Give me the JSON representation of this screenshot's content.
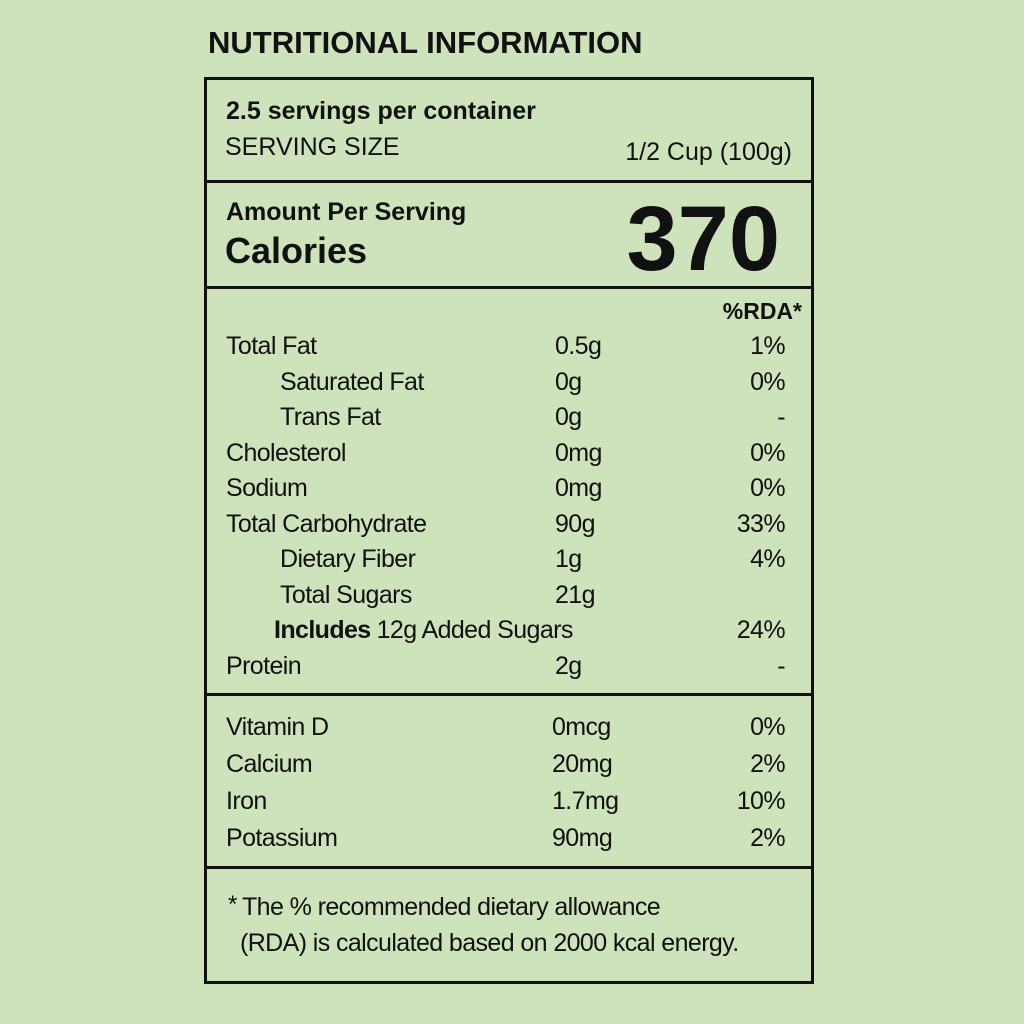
{
  "title": "NUTRITIONAL INFORMATION",
  "serving": {
    "servings": "2.5 servings per container",
    "size_label": "SERVING SIZE",
    "size_value": "1/2 Cup (100g)"
  },
  "calories": {
    "label_small": "Amount Per Serving",
    "label": "Calories",
    "value": "370"
  },
  "nutrients": {
    "header": "%RDA*",
    "rows": [
      {
        "name": "Total Fat",
        "amount": "0.5g",
        "rda": "1%"
      },
      {
        "name": "Saturated Fat",
        "amount": "0g",
        "rda": "0%",
        "indent": true
      },
      {
        "name": "Trans Fat",
        "amount": "0g",
        "rda": "-",
        "indent": true
      },
      {
        "name": "Cholesterol",
        "amount": "0mg",
        "rda": "0%"
      },
      {
        "name": "Sodium",
        "amount": "0mg",
        "rda": "0%"
      },
      {
        "name": "Total Carbohydrate",
        "amount": "90g",
        "rda": "33%"
      },
      {
        "name": "Dietary Fiber",
        "amount": "1g",
        "rda": "4%",
        "indent": true
      },
      {
        "name": "Total Sugars",
        "amount": "21g",
        "indent": true
      },
      {
        "bold": "Includes",
        "name": "12g Added Sugars",
        "rda": "24%"
      },
      {
        "name": "Protein",
        "amount": "2g",
        "rda": "-"
      }
    ]
  },
  "vitamins": {
    "rows": [
      {
        "name": "Vitamin D",
        "amount": "0mcg",
        "rda": "0%"
      },
      {
        "name": "Calcium",
        "amount": "20mg",
        "rda": "2%"
      },
      {
        "name": "Iron",
        "amount": "1.7mg",
        "rda": "10%"
      },
      {
        "name": "Potassium",
        "amount": "90mg",
        "rda": "2%"
      }
    ]
  },
  "footnote": {
    "mark": "*",
    "lines": [
      "The % recommended dietary allowance",
      "(RDA) is calculated based on 2000 kcal energy."
    ]
  }
}
